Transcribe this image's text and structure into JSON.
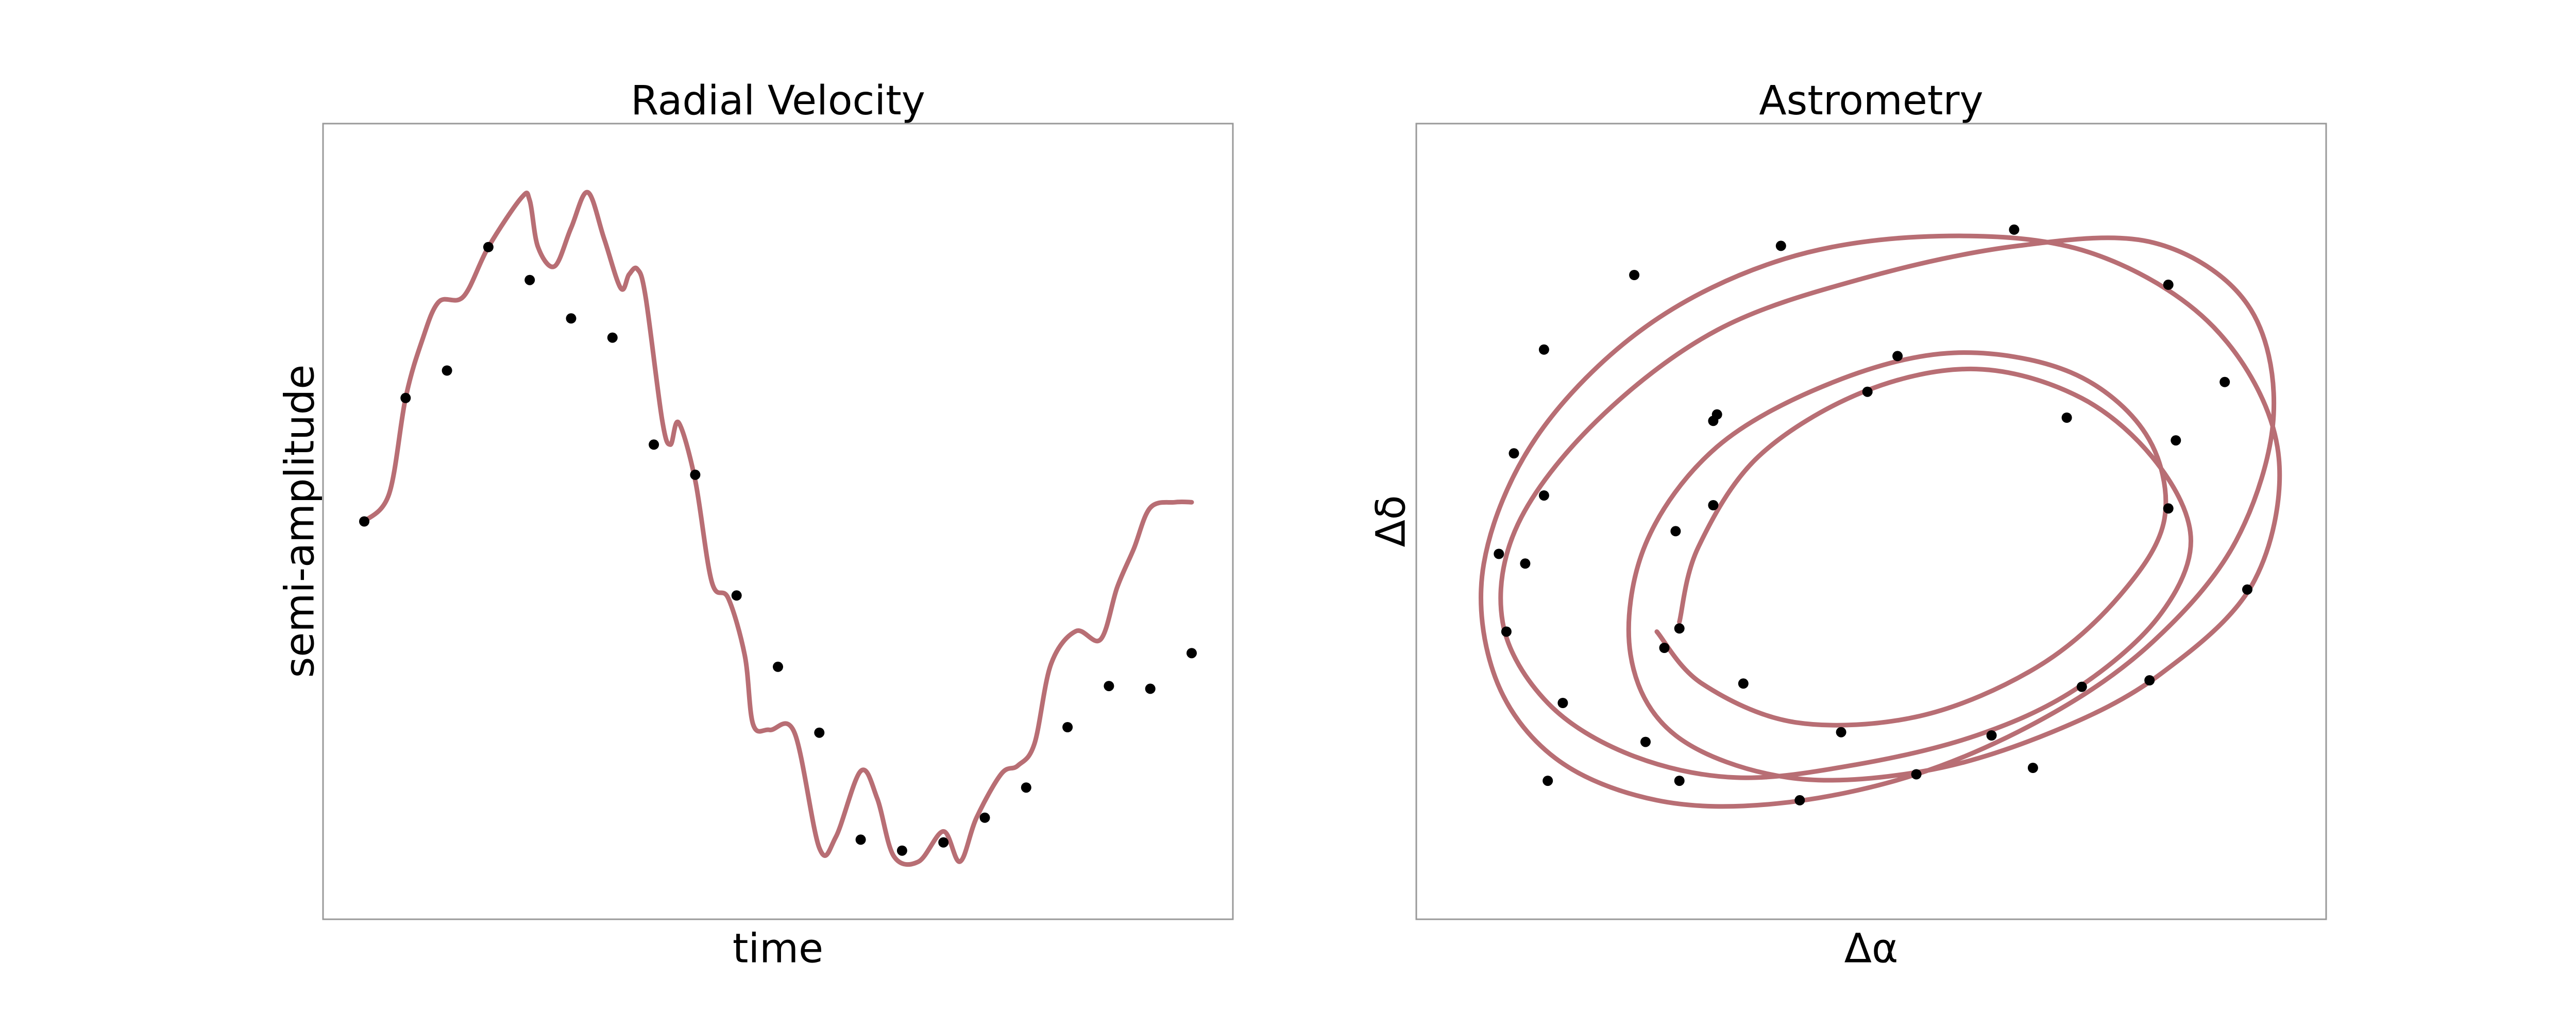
{
  "chart_data": [
    {
      "type": "line",
      "title": "Radial Velocity",
      "xlabel": "time",
      "ylabel": "semi-amplitude",
      "ticks": "none",
      "grid": false,
      "curve_color": "#B86E74",
      "marker_color": "#000000",
      "xlim": [
        0,
        1
      ],
      "ylim": [
        -1.3,
        1.3
      ],
      "curve": {
        "x": [
          0.0,
          0.03,
          0.05,
          0.07,
          0.09,
          0.12,
          0.15,
          0.19,
          0.2,
          0.21,
          0.23,
          0.25,
          0.27,
          0.29,
          0.31,
          0.32,
          0.33,
          0.34,
          0.36,
          0.37,
          0.38,
          0.4,
          0.42,
          0.44,
          0.46,
          0.47,
          0.49,
          0.52,
          0.55,
          0.57,
          0.6,
          0.62,
          0.64,
          0.67,
          0.7,
          0.72,
          0.74,
          0.77,
          0.79,
          0.81,
          0.83,
          0.86,
          0.89,
          0.91,
          0.93,
          0.95,
          0.98,
          1.0
        ],
        "y": [
          0.0,
          0.1,
          0.45,
          0.66,
          0.8,
          0.82,
          1.0,
          1.18,
          1.17,
          1.0,
          0.93,
          1.07,
          1.2,
          1.03,
          0.85,
          0.9,
          0.92,
          0.82,
          0.37,
          0.28,
          0.36,
          0.15,
          -0.22,
          -0.28,
          -0.49,
          -0.74,
          -0.76,
          -0.77,
          -1.19,
          -1.15,
          -0.91,
          -1.01,
          -1.22,
          -1.24,
          -1.13,
          -1.24,
          -1.08,
          -0.92,
          -0.89,
          -0.81,
          -0.52,
          -0.4,
          -0.43,
          -0.24,
          -0.1,
          0.05,
          0.07,
          0.07
        ]
      },
      "points": {
        "x": [
          0.0,
          0.05,
          0.1,
          0.15,
          0.2,
          0.25,
          0.3,
          0.35,
          0.4,
          0.45,
          0.5,
          0.55,
          0.6,
          0.65,
          0.7,
          0.75,
          0.8,
          0.85,
          0.9,
          0.95,
          1.0
        ],
        "y": [
          0.0,
          0.45,
          0.55,
          1.0,
          0.88,
          0.74,
          0.67,
          0.28,
          0.17,
          -0.27,
          -0.53,
          -0.77,
          -1.16,
          -1.2,
          -1.17,
          -1.08,
          -0.97,
          -0.75,
          -0.6,
          -0.61,
          -0.48
        ]
      }
    },
    {
      "type": "scatter",
      "title": "Astrometry",
      "xlabel": "Δα",
      "ylabel": "Δδ",
      "ticks": "none",
      "grid": false,
      "curve_color": "#B86E74",
      "marker_color": "#000000",
      "xlim": [
        -1.1,
        1.1
      ],
      "ylim": [
        -1.1,
        1.1
      ],
      "curve": {
        "x": [
          -0.51,
          -0.46,
          -0.3,
          -0.02,
          0.28,
          0.56,
          0.76,
          0.85,
          0.76,
          0.54,
          0.28,
          -0.04,
          -0.36,
          -0.64,
          -0.86,
          -0.98,
          -0.94,
          -0.73,
          -0.41,
          -0.02,
          0.39,
          0.75,
          1.0,
          1.07,
          0.97,
          0.75,
          0.47,
          0.12,
          -0.25,
          -0.57,
          -0.84,
          -1.0,
          -1.03,
          -0.89,
          -0.6,
          -0.23,
          0.18,
          0.58,
          0.91,
          1.08,
          1.02,
          0.77,
          0.48,
          0.14,
          -0.22,
          -0.52,
          -0.64,
          -0.6,
          -0.41,
          -0.1,
          0.22,
          0.53,
          0.73,
          0.78,
          0.66,
          0.44,
          0.13,
          -0.2,
          -0.45,
          -0.57
        ],
        "y": [
          -0.31,
          -0.08,
          0.2,
          0.4,
          0.47,
          0.38,
          0.18,
          -0.06,
          -0.3,
          -0.52,
          -0.66,
          -0.75,
          -0.79,
          -0.72,
          -0.56,
          -0.31,
          -0.01,
          0.31,
          0.59,
          0.75,
          0.85,
          0.86,
          0.67,
          0.33,
          -0.06,
          -0.37,
          -0.6,
          -0.78,
          -0.87,
          -0.86,
          -0.73,
          -0.48,
          -0.13,
          0.26,
          0.6,
          0.81,
          0.88,
          0.83,
          0.6,
          0.23,
          -0.18,
          -0.47,
          -0.65,
          -0.77,
          -0.79,
          -0.66,
          -0.41,
          -0.07,
          0.23,
          0.43,
          0.52,
          0.46,
          0.27,
          0.01,
          -0.23,
          -0.45,
          -0.6,
          -0.62,
          -0.5,
          -0.34
        ]
      },
      "points": {
        "x": [
          -0.51,
          -0.55,
          -0.52,
          -0.42,
          -0.01,
          0.07,
          0.52,
          0.79,
          0.81,
          0.56,
          0.32,
          -0.08,
          -0.34,
          -0.6,
          -0.86,
          -0.97,
          -0.92,
          -0.87,
          -0.63,
          -0.24,
          0.38,
          0.79,
          0.94,
          1.0,
          0.74,
          0.43,
          0.12,
          -0.19,
          -0.51,
          -0.82,
          -0.99,
          -0.95,
          -0.87,
          -0.41,
          -0.42
        ],
        "y": [
          -0.33,
          -0.39,
          -0.03,
          0.31,
          0.4,
          0.51,
          0.32,
          0.04,
          0.25,
          -0.51,
          -0.66,
          -0.65,
          -0.5,
          -0.68,
          -0.8,
          -0.34,
          -0.13,
          0.08,
          0.76,
          0.85,
          0.9,
          0.73,
          0.43,
          -0.21,
          -0.49,
          -0.76,
          -0.78,
          -0.86,
          -0.8,
          -0.56,
          -0.1,
          0.21,
          0.53,
          0.33,
          0.05
        ]
      }
    }
  ]
}
